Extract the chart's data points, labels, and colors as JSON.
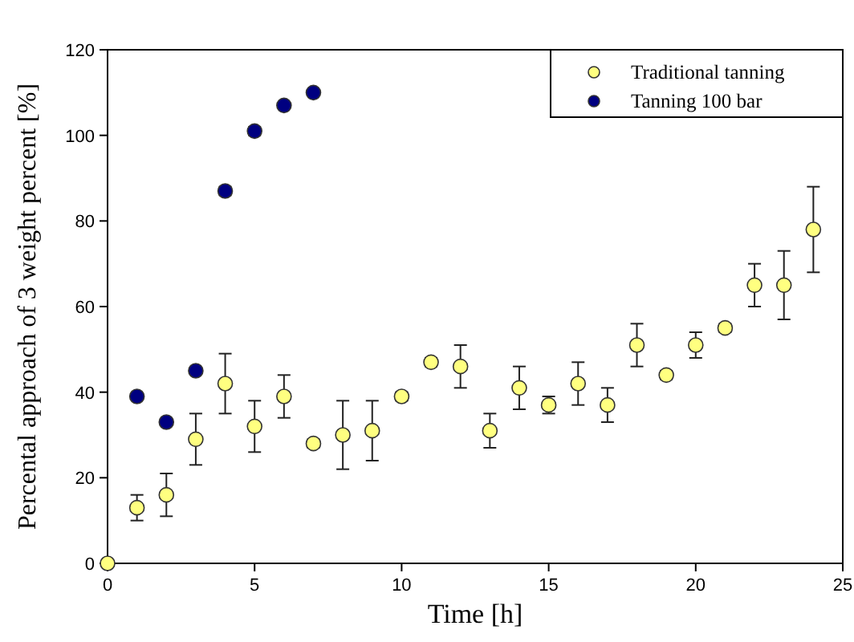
{
  "chart_data": {
    "type": "scatter",
    "xlabel": "Time [h]",
    "ylabel": "Percental approach of 3 weight percent [%]",
    "xlim": [
      0,
      25
    ],
    "xticks": [
      0,
      5,
      10,
      15,
      20,
      25
    ],
    "ylim": [
      0,
      120
    ],
    "yticks": [
      0,
      20,
      40,
      60,
      80,
      100,
      120
    ],
    "grid": false,
    "legend": "top right",
    "marker": "circle",
    "series": [
      {
        "name": "Traditional tanning",
        "color": "#ffff80",
        "x": [
          0,
          1,
          2,
          3,
          4,
          5,
          6,
          7,
          8,
          9,
          10,
          11,
          12,
          13,
          14,
          15,
          16,
          17,
          18,
          19,
          20,
          21,
          22,
          23,
          24
        ],
        "values": [
          0,
          13,
          16,
          29,
          42,
          32,
          39,
          28,
          30,
          31,
          39,
          47,
          46,
          31,
          41,
          37,
          42,
          37,
          51,
          44,
          51,
          55,
          65,
          65,
          78
        ],
        "errors": [
          null,
          3,
          5,
          6,
          7,
          6,
          5,
          1,
          8,
          7,
          1,
          1,
          5,
          4,
          5,
          2,
          5,
          4,
          5,
          1,
          3,
          1,
          5,
          8,
          10
        ]
      },
      {
        "name": "Tanning 100 bar",
        "color": "#000080",
        "x": [
          1,
          2,
          3,
          4,
          5,
          6,
          7
        ],
        "values": [
          39,
          33,
          45,
          87,
          101,
          107,
          110
        ],
        "errors": [
          null,
          null,
          null,
          1,
          1,
          null,
          null
        ]
      }
    ]
  }
}
